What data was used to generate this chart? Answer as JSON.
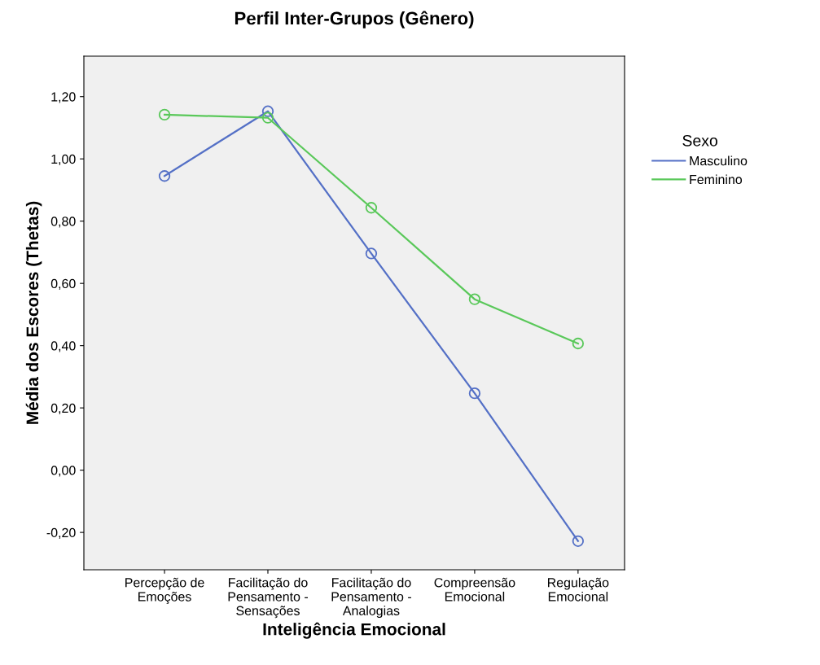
{
  "chart_data": {
    "type": "line",
    "title": "Perfil Inter-Grupos (Gênero)",
    "xlabel": "Inteligência Emocional",
    "ylabel": "Média dos Escores (Thetas)",
    "legend_title": "Sexo",
    "categories": [
      "Percepção de\nEmoções",
      "Facilitação do\nPensamento -\nSensações",
      "Facilitação do\nPensamento -\nAnalogias",
      "Compreensão\nEmocional",
      "Regulação\nEmocional"
    ],
    "series": [
      {
        "name": "Masculino",
        "color": "#5470c6",
        "values": [
          0.945,
          1.153,
          0.696,
          0.247,
          -0.228
        ]
      },
      {
        "name": "Feminino",
        "color": "#5ac85a",
        "values": [
          1.142,
          1.132,
          0.843,
          0.549,
          0.407
        ]
      }
    ],
    "ylim": [
      -0.32,
      1.33
    ],
    "yticks": [
      {
        "value": -0.2,
        "label": "-0,20"
      },
      {
        "value": 0,
        "label": "0,00"
      },
      {
        "value": 0.2,
        "label": "0,20"
      },
      {
        "value": 0.4,
        "label": "0,40"
      },
      {
        "value": 0.6,
        "label": "0,60"
      },
      {
        "value": 0.8,
        "label": "0,80"
      },
      {
        "value": 1.0,
        "label": "1,00"
      },
      {
        "value": 1.2,
        "label": "1,20"
      }
    ],
    "grid": false,
    "legend": "right",
    "marker": "circle",
    "line_style": "solid"
  }
}
